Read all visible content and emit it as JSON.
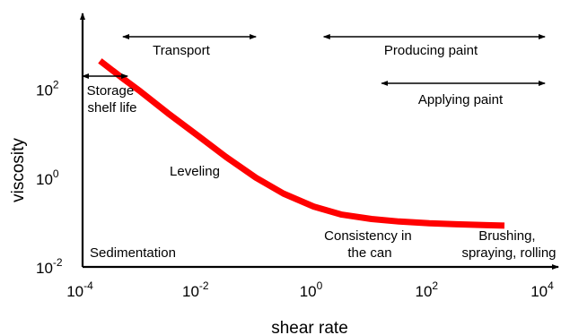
{
  "chart_data": {
    "type": "line",
    "xlabel": "shear rate",
    "ylabel": "viscosity",
    "x_scale": "log",
    "y_scale": "log",
    "xlim": [
      0.0001,
      10000
    ],
    "ylim": [
      0.01,
      1000
    ],
    "grid": false,
    "x_ticks": [
      {
        "base": "10",
        "exp": "-4",
        "value": 0.0001
      },
      {
        "base": "10",
        "exp": "-2",
        "value": 0.01
      },
      {
        "base": "10",
        "exp": "0",
        "value": 1
      },
      {
        "base": "10",
        "exp": "2",
        "value": 100
      },
      {
        "base": "10",
        "exp": "4",
        "value": 10000
      }
    ],
    "y_ticks": [
      {
        "base": "10",
        "exp": "-2",
        "value": 0.01
      },
      {
        "base": "10",
        "exp": "0",
        "value": 1
      },
      {
        "base": "10",
        "exp": "2",
        "value": 100
      }
    ],
    "series": [
      {
        "color": "#ff0000",
        "x": [
          0.0002,
          0.0005,
          0.001,
          0.003,
          0.01,
          0.03,
          0.1,
          0.3,
          1,
          3,
          10,
          30,
          100,
          300,
          1000,
          2000
        ],
        "y": [
          436,
          174,
          89,
          28.8,
          8.9,
          3.02,
          1.02,
          0.447,
          0.229,
          0.151,
          0.12,
          0.105,
          0.096,
          0.091,
          0.087,
          0.085
        ]
      }
    ],
    "ranges": [
      {
        "label": "Transport",
        "x": [
          0.0005,
          0.1
        ]
      },
      {
        "label": "Producing paint",
        "x": [
          1.5,
          10000
        ]
      },
      {
        "label": "Applying paint",
        "x": [
          15,
          10000
        ]
      },
      {
        "label": "Storage shelf life",
        "x": [
          0.0001,
          0.0006
        ]
      }
    ],
    "annotations": [
      {
        "lines": [
          "Storage",
          "shelf life"
        ]
      },
      {
        "lines": [
          "Leveling"
        ]
      },
      {
        "lines": [
          "Sedimentation"
        ]
      },
      {
        "lines": [
          "Consistency in",
          "the can"
        ]
      },
      {
        "lines": [
          "Brushing,",
          "spraying, rolling"
        ]
      }
    ]
  }
}
